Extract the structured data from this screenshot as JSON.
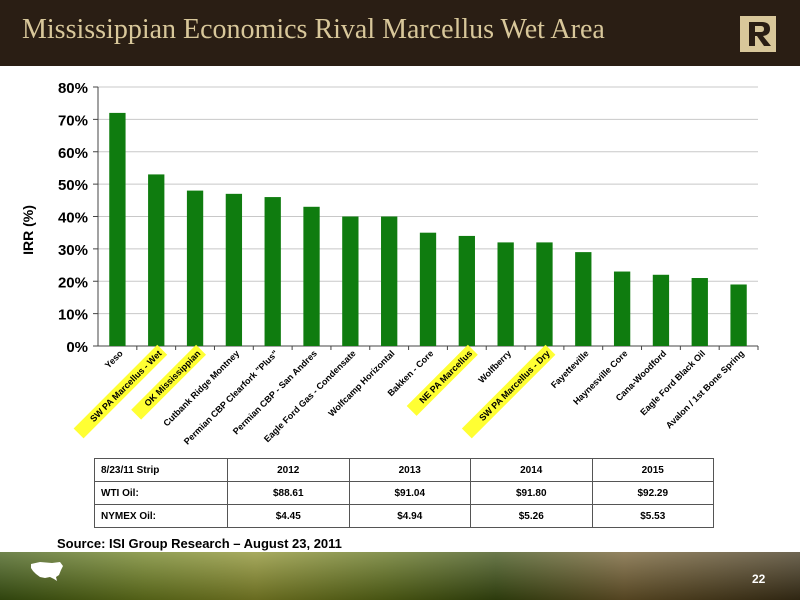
{
  "title": "Mississippian Economics Rival Marcellus Wet Area",
  "logo_icon": "r-logo-icon",
  "chart_data": {
    "type": "bar",
    "ylabel": "IRR (%)",
    "ylim": [
      0,
      80
    ],
    "yticks": [
      "0%",
      "10%",
      "20%",
      "30%",
      "40%",
      "50%",
      "60%",
      "70%",
      "80%"
    ],
    "grid": true,
    "bar_color": "#0f7c0f",
    "highlight_color": "#ffff33",
    "categories": [
      "Yeso",
      "SW PA Marcellus - Wet",
      "OK Mississippian",
      "Cutbank Ridge Montney",
      "Permian CBP Clearfork \"Plus\"",
      "Permian CBP - San Andres",
      "Eagle Ford Gas - Condensate",
      "Wolfcamp Horizontal",
      "Bakken - Core",
      "NE PA Marcellus",
      "Wolfberry",
      "SW PA Marcellus - Dry",
      "Fayetteville",
      "Haynesville Core",
      "Cana-Woodford",
      "Eagle Ford Black Oil",
      "Avalon / 1st Bone Spring"
    ],
    "values": [
      72,
      53,
      48,
      47,
      46,
      43,
      40,
      40,
      35,
      34,
      32,
      32,
      29,
      23,
      22,
      21,
      19
    ],
    "highlighted": [
      false,
      true,
      true,
      false,
      false,
      false,
      false,
      false,
      false,
      true,
      false,
      true,
      false,
      false,
      false,
      false,
      false
    ]
  },
  "table": {
    "header": [
      "8/23/11 Strip",
      "2012",
      "2013",
      "2014",
      "2015"
    ],
    "rows": [
      [
        "WTI Oil:",
        "$88.61",
        "$91.04",
        "$91.80",
        "$92.29"
      ],
      [
        "NYMEX Oil:",
        "$4.45",
        "$4.94",
        "$5.26",
        "$5.53"
      ]
    ]
  },
  "source": "Source: ISI Group Research – August 23, 2011",
  "page_number": "22",
  "map_icon": "us-map-icon"
}
